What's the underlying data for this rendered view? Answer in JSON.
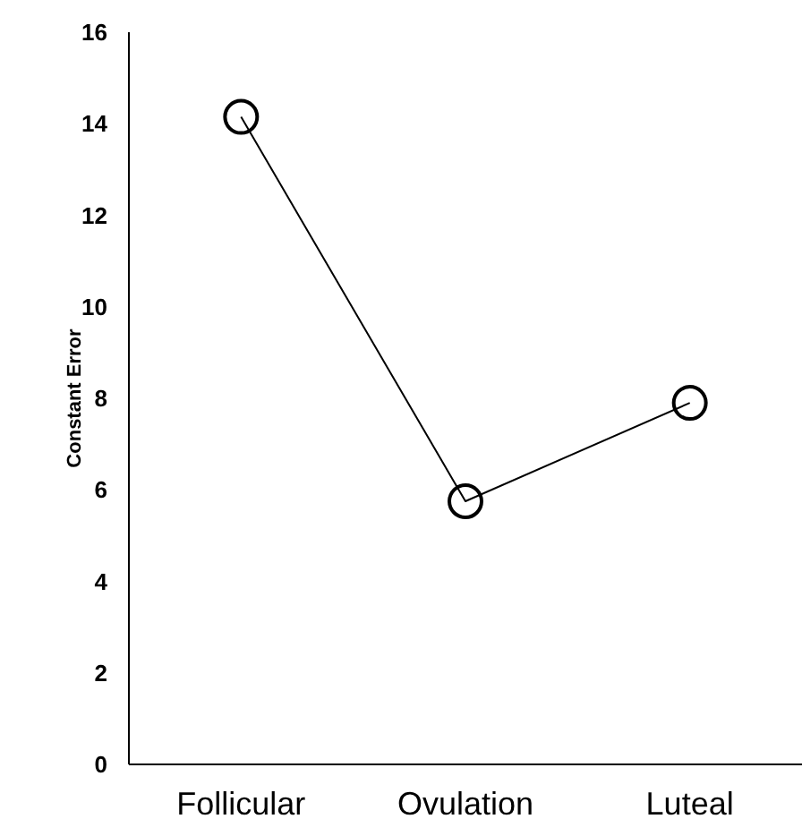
{
  "chart_data": {
    "type": "line",
    "ylabel": "Constant Error",
    "categories": [
      "Follicular",
      "Ovulation",
      "Luteal"
    ],
    "series": [
      {
        "color": "#000000",
        "values": [
          14.15,
          5.75,
          7.9
        ]
      }
    ],
    "ylim": [
      0,
      16
    ],
    "yticks": [
      0,
      2,
      4,
      6,
      8,
      10,
      12,
      14,
      16
    ],
    "marker": "circle",
    "grid": false
  }
}
